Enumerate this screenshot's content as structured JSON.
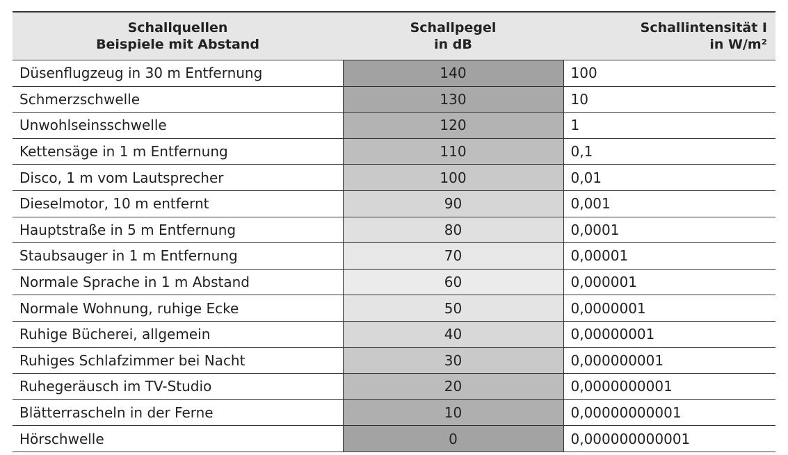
{
  "table": {
    "header": [
      [
        "Schallquellen",
        "Beispiele mit Abstand"
      ],
      [
        "Schallpegel",
        "in dB"
      ],
      [
        "Schallintensität I",
        "in W/m²"
      ]
    ],
    "rows": [
      [
        "Düsenflugzeug in 30 m Entfernung",
        "140",
        "100"
      ],
      [
        "Schmerzschwelle",
        "130",
        "10"
      ],
      [
        "Unwohlseinsschwelle",
        "120",
        "1"
      ],
      [
        "Kettensäge in 1 m Entfernung",
        "110",
        "0,1"
      ],
      [
        "Disco, 1 m vom Lautsprecher",
        "100",
        "0,01"
      ],
      [
        "Dieselmotor, 10 m entfernt",
        "90",
        "0,001"
      ],
      [
        "Hauptstraße in 5 m Entfernung",
        "80",
        "0,0001"
      ],
      [
        "Staubsauger in 1 m Entfernung",
        "70",
        "0,00001"
      ],
      [
        "Normale Sprache in 1 m Abstand",
        "60",
        "0,000001"
      ],
      [
        "Normale Wohnung, ruhige Ecke",
        "50",
        "0,0000001"
      ],
      [
        "Ruhige Bücherei, allgemein",
        "40",
        "0,00000001"
      ],
      [
        "Ruhiges Schlafzimmer bei Nacht",
        "30",
        "0,000000001"
      ],
      [
        "Ruhegeräusch im TV-Studio",
        "20",
        "0,0000000001"
      ],
      [
        "Blätterrascheln in der Ferne",
        "10",
        "0,00000000001"
      ],
      [
        "Hörschwelle",
        "0",
        "0,000000000001"
      ]
    ]
  }
}
